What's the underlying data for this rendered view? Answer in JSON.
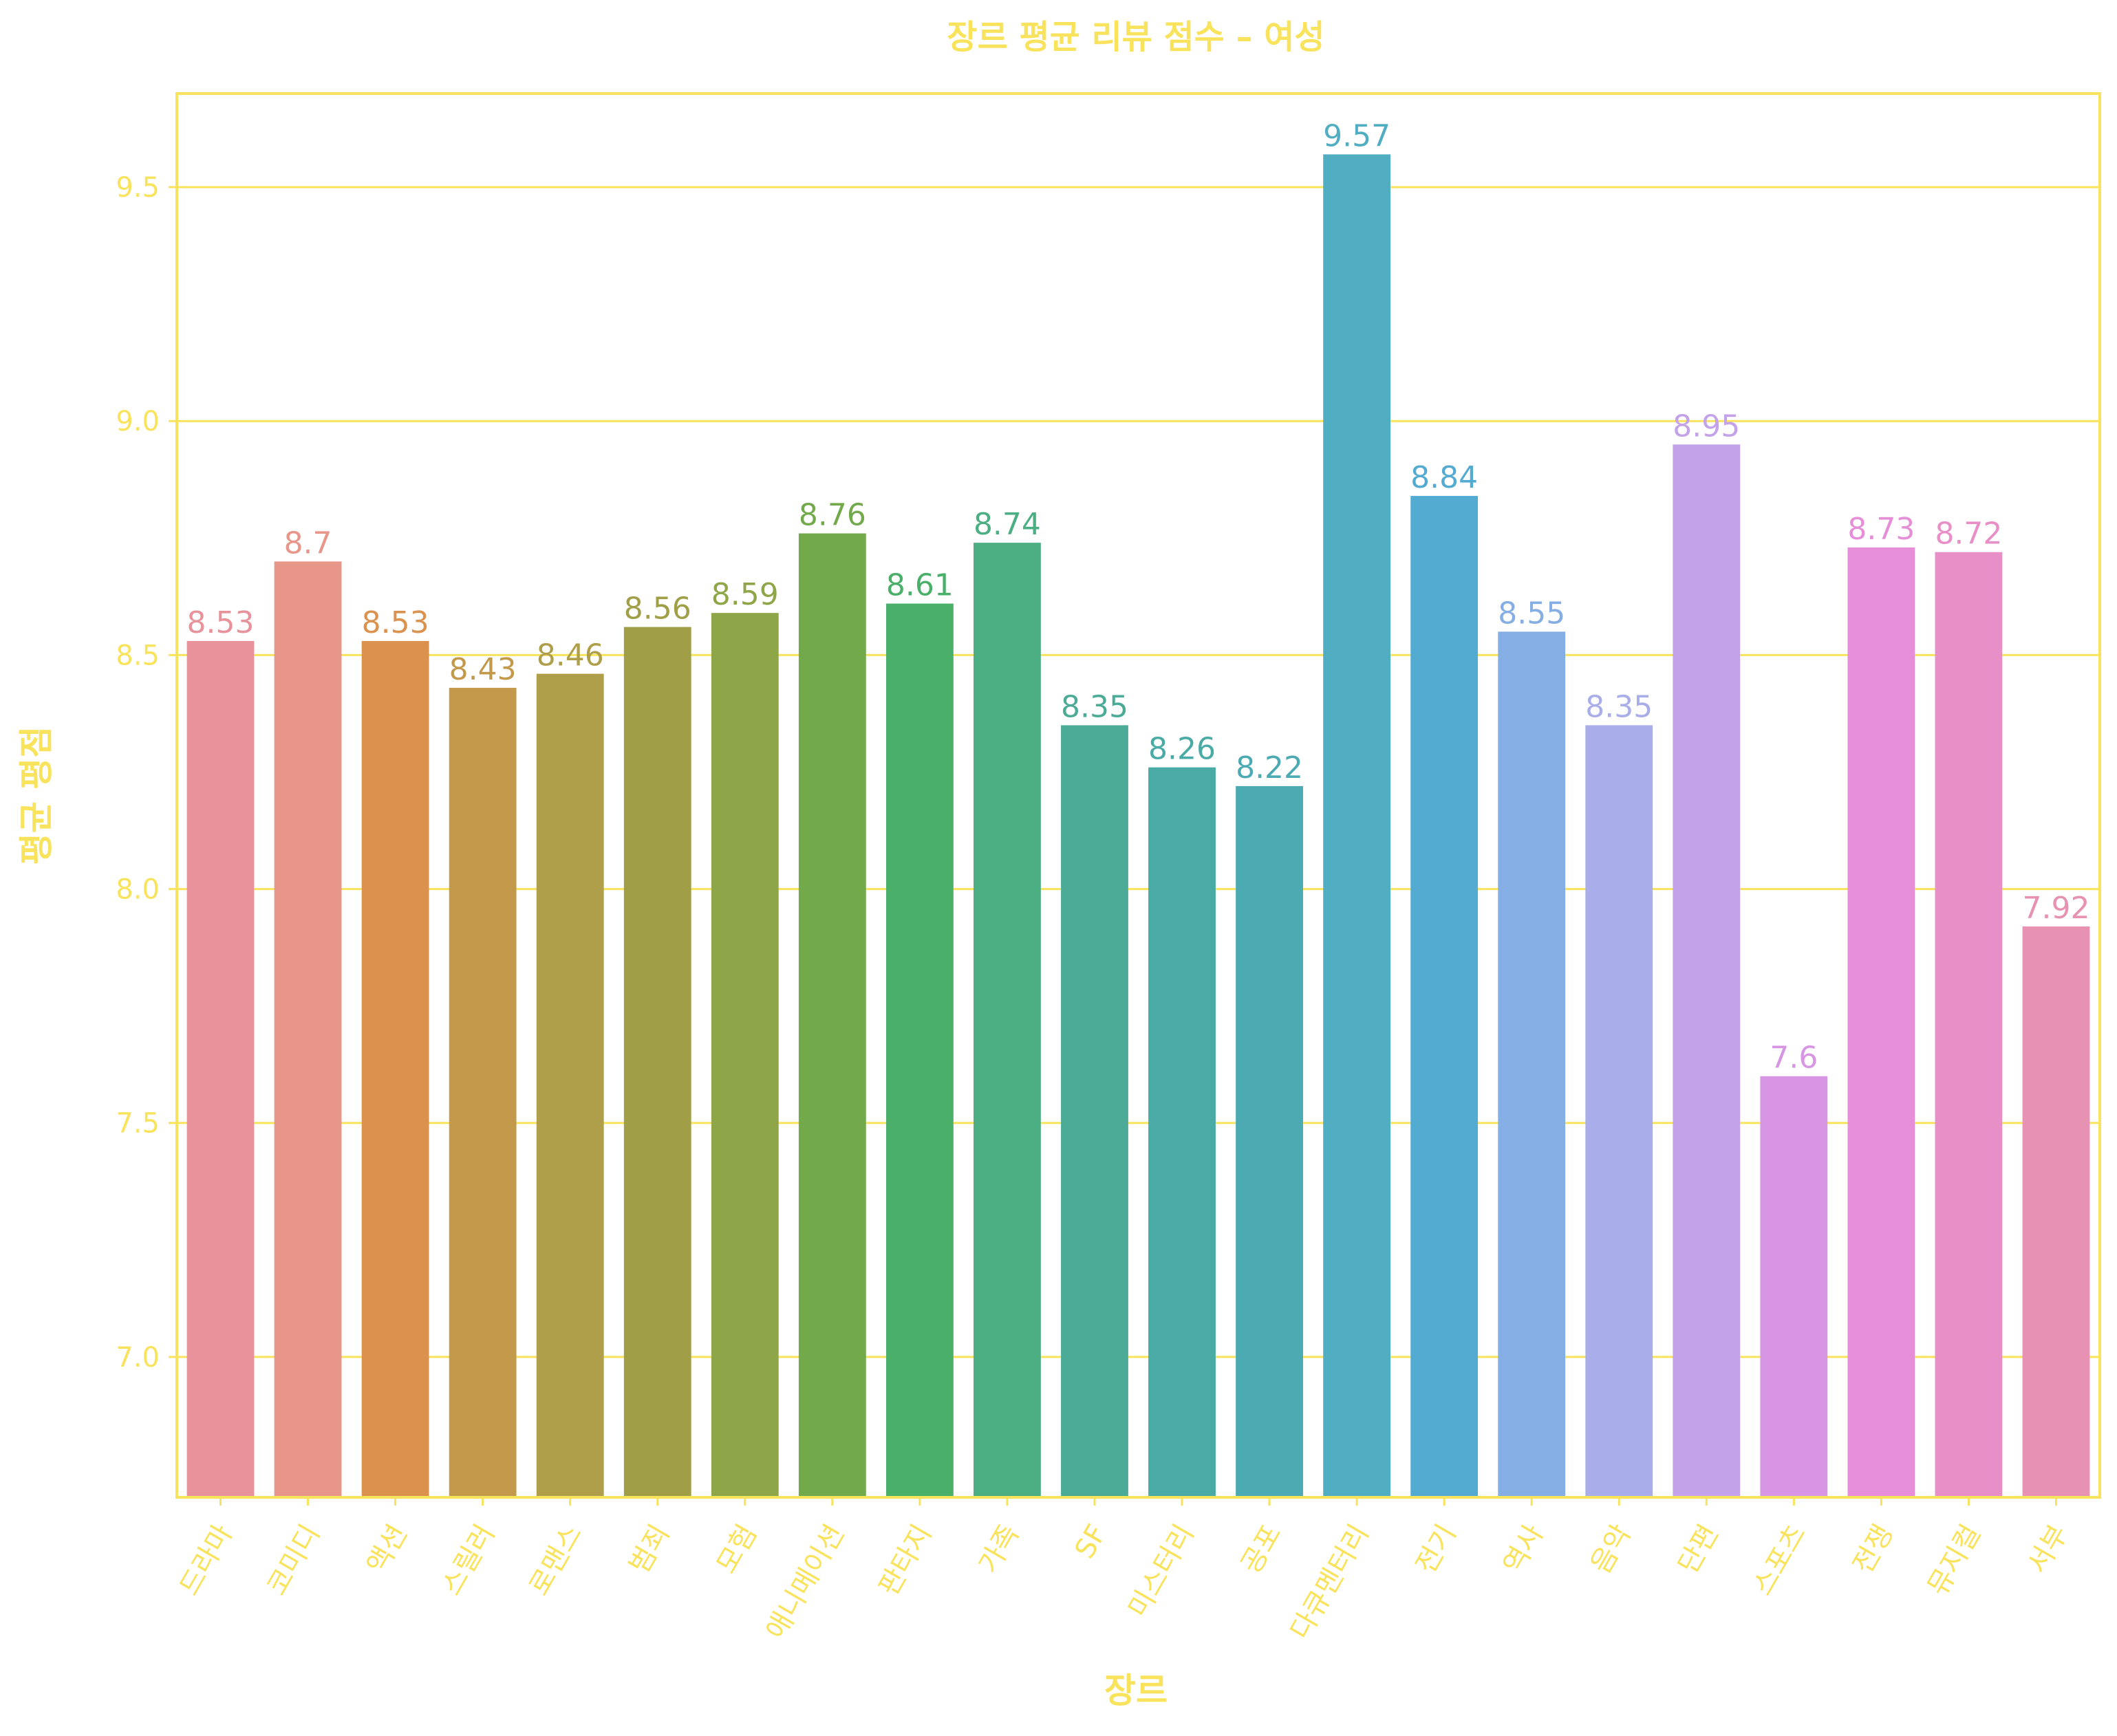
{
  "chart_data": {
    "type": "bar",
    "title": "장르 평균 리뷰 점수 – 여성",
    "xlabel": "장르",
    "ylabel": "평균 평점",
    "ylim": [
      6.7,
      9.7
    ],
    "yticks": [
      "7.0",
      "7.5",
      "8.0",
      "8.5",
      "9.0",
      "9.5"
    ],
    "grid": "horizontal",
    "categories": [
      "드라마",
      "코미디",
      "액션",
      "스릴러",
      "로맨스",
      "범죄",
      "모험",
      "애니메이션",
      "판타지",
      "가족",
      "SF",
      "미스터리",
      "공포",
      "다큐멘터리",
      "전기",
      "역사",
      "음악",
      "단편",
      "스포츠",
      "전쟁",
      "뮤지컬",
      "서부"
    ],
    "values": [
      8.53,
      8.7,
      8.53,
      8.43,
      8.46,
      8.56,
      8.59,
      8.76,
      8.61,
      8.74,
      8.35,
      8.26,
      8.22,
      9.57,
      8.84,
      8.55,
      8.35,
      8.95,
      7.6,
      8.73,
      8.72,
      7.92
    ],
    "value_labels": [
      "8.53",
      "8.7",
      "8.53",
      "8.43",
      "8.46",
      "8.56",
      "8.59",
      "8.76",
      "8.61",
      "8.74",
      "8.35",
      "8.26",
      "8.22",
      "9.57",
      "8.84",
      "8.55",
      "8.35",
      "8.95",
      "7.6",
      "8.73",
      "8.72",
      "7.92"
    ],
    "colors": [
      "#e8939c",
      "#e8968a",
      "#db924f",
      "#c39a4c",
      "#af9e4a",
      "#a09f47",
      "#8fa648",
      "#72aa4b",
      "#4aaf68",
      "#4cae83",
      "#4bab97",
      "#4aaaa5",
      "#4caab2",
      "#51adc1",
      "#54abd2",
      "#85aee4",
      "#a9aeea",
      "#c3a2ea",
      "#d895e4",
      "#e68ed8",
      "#e78fc6",
      "#e792b2"
    ],
    "label_colors": [
      "#e8939c",
      "#e8968a",
      "#db924f",
      "#c39a4c",
      "#af9e4a",
      "#a09f47",
      "#8fa648",
      "#72aa4b",
      "#4aaf68",
      "#4cae83",
      "#4bab97",
      "#4aaaa5",
      "#4caab2",
      "#51adc1",
      "#54abd2",
      "#85aee4",
      "#a9aeea",
      "#c3a2ea",
      "#d895e4",
      "#e68ed8",
      "#e78fc6",
      "#e792b2"
    ],
    "text_color": "#f9e35c",
    "axis_color": "#f9e35c"
  }
}
